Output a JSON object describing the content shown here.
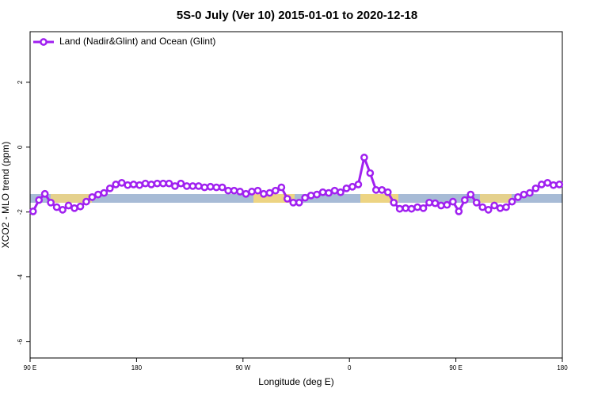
{
  "chart_data": {
    "type": "line",
    "title": "5S-0 July (Ver 10)   2015-01-01 to 2020-12-18",
    "x_label": "Longitude (deg E)",
    "y_label": "XCO2 - MLO trend (ppm)",
    "xlim": [
      90,
      540
    ],
    "xticks": [
      {
        "value": 90,
        "label": "90 E"
      },
      180,
      {
        "value": 270,
        "label": "90 W"
      },
      {
        "value": 360,
        "label": "0"
      },
      {
        "value": 450,
        "label": "90 E"
      },
      {
        "value": 540,
        "label": "180"
      }
    ],
    "ylim": [
      -6.5,
      3.56
    ],
    "yticks": [
      -6,
      -4,
      -2,
      0,
      2
    ],
    "legend": "top-left",
    "x": [
      92.5,
      97.5,
      102.5,
      107.5,
      112.5,
      117.5,
      122.5,
      127.5,
      132.5,
      137.5,
      142.5,
      147.5,
      152.5,
      157.5,
      162.5,
      167.5,
      172.5,
      177.5,
      182.5,
      187.5,
      192.5,
      197.5,
      202.5,
      207.5,
      212.5,
      217.5,
      222.5,
      227.5,
      232.5,
      237.5,
      242.5,
      247.5,
      252.5,
      257.5,
      262.5,
      267.5,
      272.5,
      277.5,
      282.5,
      287.5,
      292.5,
      297.5,
      302.5,
      307.5,
      312.5,
      317.5,
      322.5,
      327.5,
      332.5,
      337.5,
      342.5,
      347.5,
      352.5,
      357.5,
      362.5,
      367.5,
      372.5,
      377.5,
      382.5,
      387.5,
      392.5,
      397.5,
      402.5,
      407.5,
      412.5,
      417.5,
      422.5,
      427.5,
      432.5,
      437.5,
      442.5,
      447.5,
      452.5,
      457.5,
      462.5,
      467.5,
      472.5,
      477.5,
      482.5,
      487.5,
      492.5,
      497.5,
      502.5,
      507.5,
      512.5,
      517.5,
      522.5,
      527.5,
      532.5,
      537.5
    ],
    "series": [
      {
        "name": "Land (Nadir&Glint) and Ocean (Glint)",
        "color": "#a020f0",
        "values": [
          -1.98,
          -1.63,
          -1.44,
          -1.71,
          -1.85,
          -1.93,
          -1.8,
          -1.88,
          -1.83,
          -1.68,
          -1.54,
          -1.46,
          -1.41,
          -1.27,
          -1.15,
          -1.1,
          -1.17,
          -1.15,
          -1.17,
          -1.12,
          -1.15,
          -1.12,
          -1.12,
          -1.12,
          -1.2,
          -1.12,
          -1.2,
          -1.2,
          -1.2,
          -1.24,
          -1.22,
          -1.24,
          -1.24,
          -1.34,
          -1.34,
          -1.37,
          -1.44,
          -1.37,
          -1.34,
          -1.44,
          -1.41,
          -1.34,
          -1.24,
          -1.59,
          -1.71,
          -1.71,
          -1.56,
          -1.49,
          -1.46,
          -1.39,
          -1.41,
          -1.34,
          -1.39,
          -1.27,
          -1.22,
          -1.15,
          -0.32,
          -0.8,
          -1.32,
          -1.32,
          -1.39,
          -1.71,
          -1.9,
          -1.88,
          -1.9,
          -1.85,
          -1.88,
          -1.71,
          -1.73,
          -1.8,
          -1.78,
          -1.68,
          -1.98,
          -1.63,
          -1.46,
          -1.71,
          -1.85,
          -1.93,
          -1.8,
          -1.88,
          -1.85,
          -1.68,
          -1.54,
          -1.46,
          -1.41,
          -1.27,
          -1.15,
          -1.1,
          -1.17,
          -1.15
        ]
      }
    ]
  }
}
